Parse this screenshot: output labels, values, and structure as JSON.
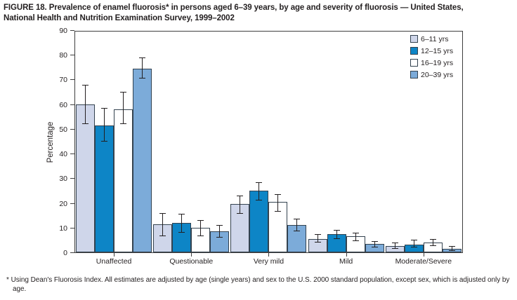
{
  "figure": {
    "title_line1": "FIGURE 18. Prevalence of enamel fluorosis* in persons aged 6–39 years, by age and severity of fluorosis — United States,",
    "title_line2": "National Health and Nutrition Examination Survey, 1999–2002",
    "footnote_marker": "*",
    "footnote_text": "Using Dean's Fluorosis Index. All estimates are adjusted by age (single years) and sex to the U.S. 2000 standard population, except sex, which is adjusted only by age."
  },
  "colors": {
    "text": "#231f20",
    "frame": "#3e3e3e",
    "bar_border": "#33424f",
    "error_bar": "#231f20"
  },
  "chart_data": {
    "type": "bar",
    "title": "FIGURE 18. Prevalence of enamel fluorosis* in persons aged 6–39 years, by age and severity of fluorosis — United States, National Health and Nutrition Examination Survey, 1999–2002",
    "xlabel": "",
    "ylabel": "Percentage",
    "ylim": [
      0,
      90
    ],
    "ytick_step": 10,
    "grid": false,
    "error_bars": true,
    "legend_position": "top-right-inside",
    "categories": [
      "Unaffected",
      "Questionable",
      "Very mild",
      "Mild",
      "Moderate/Severe"
    ],
    "series": [
      {
        "name": "6–11 yrs",
        "color": "#cfd6ea",
        "values": [
          60,
          11.5,
          19.5,
          5.5,
          2.5
        ],
        "err_lo": [
          52,
          6.5,
          15.5,
          4,
          1.5
        ],
        "err_hi": [
          68,
          16,
          23,
          7.5,
          4
        ]
      },
      {
        "name": "12–15 yrs",
        "color": "#0d85c6",
        "values": [
          51.5,
          12,
          25,
          7.5,
          3
        ],
        "err_lo": [
          45,
          8,
          21,
          5.5,
          2
        ],
        "err_hi": [
          58.5,
          15.5,
          28.5,
          9,
          5
        ]
      },
      {
        "name": "16–19 yrs",
        "color": "#ffffff",
        "values": [
          58,
          10,
          20.5,
          6.5,
          4
        ],
        "err_lo": [
          52,
          6.5,
          16.5,
          4.5,
          2.5
        ],
        "err_hi": [
          65,
          13,
          23.5,
          8,
          5.5
        ]
      },
      {
        "name": "20–39 yrs",
        "color": "#7cabd9",
        "values": [
          74.5,
          8.5,
          11,
          3.5,
          1.5
        ],
        "err_lo": [
          70.5,
          6,
          8.5,
          2,
          0.5
        ],
        "err_hi": [
          79,
          11,
          13.5,
          4.5,
          2.5
        ]
      }
    ]
  }
}
